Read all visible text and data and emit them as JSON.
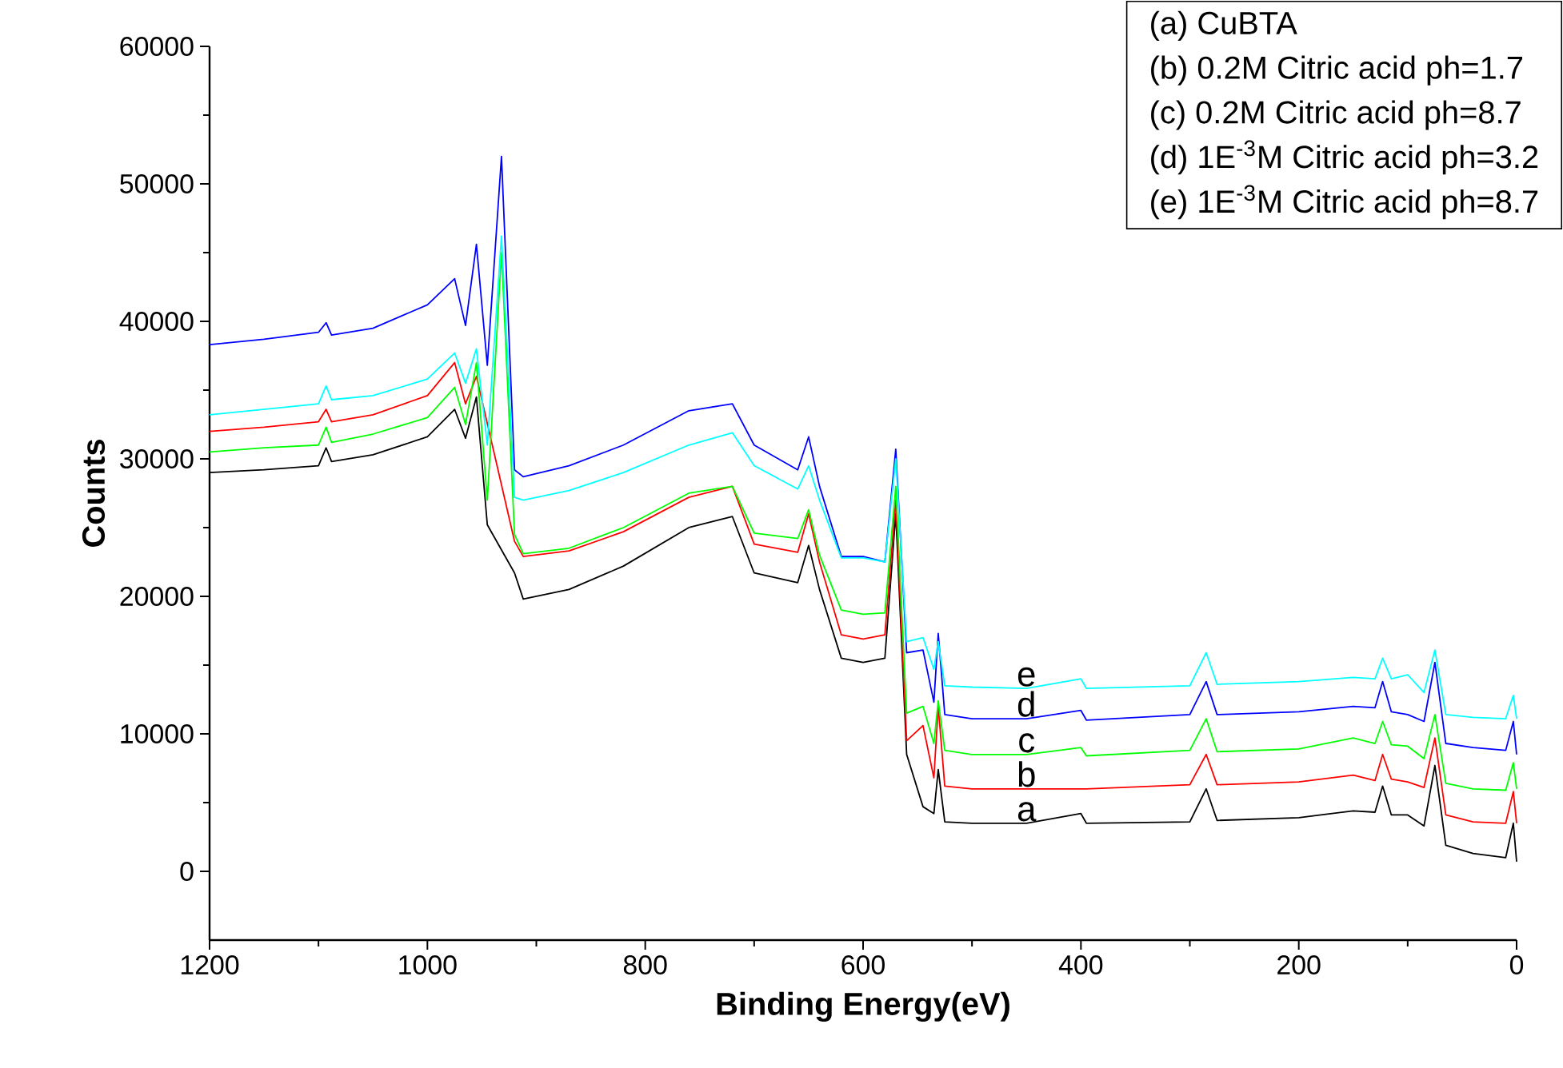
{
  "chart_data": {
    "type": "line",
    "xlabel": "Binding Energy(eV)",
    "ylabel": "Counts",
    "xlim": [
      1200,
      0
    ],
    "ylim": [
      -5000,
      60000
    ],
    "xticks": [
      1200,
      1000,
      800,
      600,
      400,
      200,
      0
    ],
    "yticks": [
      0,
      10000,
      20000,
      30000,
      40000,
      50000,
      60000
    ],
    "marker": "none",
    "line_style": "solid",
    "annotations": [
      "(a) CuBTA",
      "(b) 0.2M Citric acid ph=1.7",
      "(c) 0.2M Citric acid ph=8.7",
      "(d) 1E$^{-3}$M Citric acid ph=3.2",
      "(e) 1E$^{-3}$M Citric acid ph=8.7"
    ],
    "x": [
      1200,
      1150,
      1100,
      1093,
      1088,
      1050,
      1000,
      975,
      965,
      955,
      945,
      932,
      920,
      912,
      870,
      820,
      760,
      720,
      700,
      660,
      650,
      640,
      620,
      600,
      580,
      570,
      560,
      545,
      535,
      531,
      525,
      500,
      450,
      400,
      395,
      300,
      285,
      275,
      200,
      150,
      130,
      123,
      115,
      100,
      85,
      75,
      65,
      40,
      10,
      3,
      0
    ],
    "series": [
      {
        "name": "a",
        "color": "#000000",
        "values": [
          29000,
          29200,
          29500,
          30800,
          29800,
          30300,
          31600,
          33600,
          31500,
          34500,
          25200,
          null,
          21700,
          19800,
          20500,
          22200,
          25000,
          25800,
          21700,
          21000,
          23700,
          20500,
          15500,
          15200,
          15500,
          26000,
          8500,
          4700,
          4200,
          7400,
          3600,
          3500,
          3500,
          4200,
          3500,
          3600,
          6000,
          3700,
          3900,
          4400,
          4300,
          6200,
          4100,
          4100,
          3300,
          7700,
          1900,
          1300,
          1000,
          3500,
          700
        ]
      },
      {
        "name": "b",
        "color": "#ff0000",
        "values": [
          32000,
          32300,
          32700,
          33600,
          32700,
          33200,
          34600,
          37000,
          34000,
          36000,
          null,
          null,
          24000,
          22900,
          23300,
          24700,
          27200,
          28000,
          23800,
          23200,
          26000,
          22500,
          17200,
          16900,
          17200,
          27000,
          9500,
          10600,
          6800,
          12000,
          6200,
          6000,
          6000,
          6000,
          6000,
          6300,
          8500,
          6300,
          6500,
          7000,
          6600,
          8500,
          6700,
          6500,
          6100,
          9700,
          4100,
          3600,
          3500,
          5800,
          3500
        ]
      },
      {
        "name": "c",
        "color": "#00ff00",
        "values": [
          30500,
          30800,
          31000,
          32300,
          31200,
          31800,
          33000,
          35200,
          32500,
          37000,
          27000,
          45000,
          24500,
          23100,
          23500,
          25000,
          27500,
          28000,
          24600,
          24200,
          26300,
          23000,
          19000,
          18700,
          18800,
          28000,
          11500,
          12000,
          9300,
          12400,
          8800,
          8500,
          8500,
          9000,
          8400,
          8800,
          11100,
          8700,
          8900,
          9700,
          9300,
          10900,
          9200,
          9100,
          8200,
          11400,
          6400,
          6000,
          5900,
          7900,
          6000
        ]
      },
      {
        "name": "d",
        "color": "#0000ff",
        "values": [
          38300,
          38700,
          39200,
          39900,
          39000,
          39500,
          41200,
          43100,
          39700,
          45600,
          36800,
          52000,
          29200,
          28700,
          29500,
          31000,
          33500,
          34000,
          31000,
          29200,
          31600,
          28000,
          22900,
          22900,
          22500,
          30700,
          15900,
          16100,
          12300,
          17300,
          11400,
          11100,
          11100,
          11700,
          11000,
          11400,
          13800,
          11400,
          11600,
          12000,
          11900,
          13800,
          11600,
          11400,
          10900,
          15200,
          9300,
          9000,
          8800,
          10900,
          8500
        ]
      },
      {
        "name": "e",
        "color": "#00ffff",
        "values": [
          33200,
          33600,
          34000,
          35300,
          34300,
          34600,
          35800,
          37700,
          35500,
          38000,
          31000,
          46200,
          27200,
          27000,
          27700,
          29000,
          31000,
          31900,
          29500,
          27800,
          29500,
          27000,
          22800,
          22800,
          22500,
          30000,
          16700,
          17000,
          14700,
          16700,
          13500,
          13400,
          13300,
          14000,
          13300,
          13500,
          15900,
          13600,
          13800,
          14100,
          14000,
          15500,
          14000,
          14300,
          13000,
          16100,
          11400,
          11200,
          11100,
          12800,
          11100
        ]
      }
    ]
  }
}
